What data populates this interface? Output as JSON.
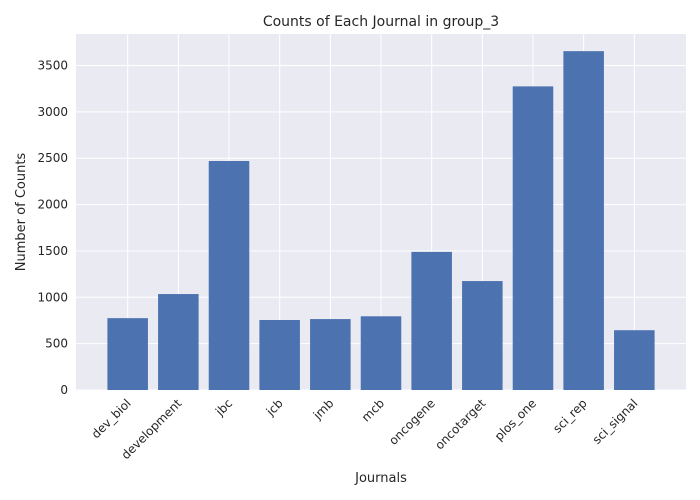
{
  "chart_data": {
    "type": "bar",
    "title": "Counts of Each Journal in group_3",
    "xlabel": "Journals",
    "ylabel": "Number of Counts",
    "categories": [
      "dev_biol",
      "development",
      "jbc",
      "jcb",
      "jmb",
      "mcb",
      "oncogene",
      "oncotarget",
      "plos_one",
      "sci_rep",
      "sci_signal"
    ],
    "values": [
      775,
      1035,
      2470,
      755,
      765,
      795,
      1490,
      1175,
      3275,
      3655,
      645
    ],
    "ylim": [
      0,
      3840
    ],
    "yticks": [
      0,
      500,
      1000,
      1500,
      2000,
      2500,
      3000,
      3500
    ],
    "grid": true,
    "bar_color": "#4c72b0",
    "background_color": "#eaeaf2",
    "grid_color": "#ffffff"
  }
}
